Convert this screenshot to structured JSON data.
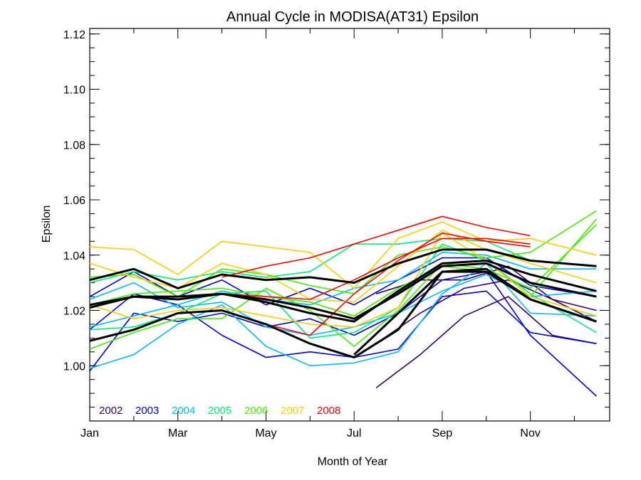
{
  "chart_data": {
    "type": "line",
    "title": "Annual Cycle in MODISA(AT31) Epsilon",
    "xlabel": "Month of Year",
    "ylabel": "Epsilon",
    "xlim": [
      1,
      12.8
    ],
    "ylim": [
      0.98,
      1.122
    ],
    "xticks": [
      {
        "value": 1,
        "label": "Jan"
      },
      {
        "value": 3,
        "label": "Mar"
      },
      {
        "value": 5,
        "label": "May"
      },
      {
        "value": 7,
        "label": "Jul"
      },
      {
        "value": 9,
        "label": "Sep"
      },
      {
        "value": 11,
        "label": "Nov"
      }
    ],
    "yticks": [
      {
        "value": 1.0,
        "label": "1.00"
      },
      {
        "value": 1.02,
        "label": "1.02"
      },
      {
        "value": 1.04,
        "label": "1.04"
      },
      {
        "value": 1.06,
        "label": "1.06"
      },
      {
        "value": 1.08,
        "label": "1.08"
      },
      {
        "value": 1.1,
        "label": "1.10"
      },
      {
        "value": 1.12,
        "label": "1.12"
      }
    ],
    "grid": false,
    "legend": {
      "placement": "bottom-left",
      "entries": [
        {
          "label": "2002",
          "color": "#330066"
        },
        {
          "label": "2003",
          "color": "#0000dd"
        },
        {
          "label": "2004",
          "color": "#00bbff"
        },
        {
          "label": "2005",
          "color": "#00ee77"
        },
        {
          "label": "2006",
          "color": "#44ee00"
        },
        {
          "label": "2007",
          "color": "#ffcc00"
        },
        {
          "label": "2008",
          "color": "#ff0000"
        }
      ]
    },
    "series": [
      {
        "name": "2002",
        "color": "#330066",
        "x": [
          7.5,
          8.5,
          9.5,
          10.5,
          11.5,
          12.5
        ],
        "y": [
          0.992,
          1.004,
          1.018,
          1.025,
          1.011,
          1.008
        ]
      },
      {
        "name": "2002",
        "color": "#330066",
        "x": [
          7.5,
          8.5,
          9.5,
          10.5,
          11.5,
          12.5
        ],
        "y": [
          1.026,
          1.031,
          1.031,
          1.036,
          1.024,
          1.02
        ]
      },
      {
        "name": "2002",
        "color": "#330066",
        "x": [
          7.5,
          8.5,
          9.5,
          10.5,
          11.5,
          12.5
        ],
        "y": [
          1.008,
          1.019,
          1.028,
          1.031,
          1.024,
          1.016
        ]
      },
      {
        "name": "2003",
        "color": "#0000dd",
        "x": [
          1,
          2,
          3,
          4,
          5,
          6,
          7,
          8,
          9,
          10,
          11,
          12.5
        ],
        "y": [
          0.998,
          1.019,
          1.016,
          1.019,
          1.014,
          1.017,
          1.011,
          1.019,
          1.031,
          1.034,
          1.011,
          0.989
        ]
      },
      {
        "name": "2003",
        "color": "#0000dd",
        "x": [
          1,
          2,
          3,
          4,
          5,
          6,
          7,
          8,
          9,
          10,
          11,
          12.5
        ],
        "y": [
          1.025,
          1.034,
          1.025,
          1.031,
          1.022,
          1.028,
          1.022,
          1.031,
          1.039,
          1.039,
          1.029,
          1.025
        ]
      },
      {
        "name": "2003",
        "color": "#0000dd",
        "x": [
          1,
          2,
          3,
          4,
          5,
          6,
          7,
          8,
          9,
          10,
          11,
          12.5
        ],
        "y": [
          1.013,
          1.026,
          1.022,
          1.011,
          1.003,
          1.005,
          1.003,
          1.006,
          1.025,
          1.027,
          1.012,
          1.008
        ]
      },
      {
        "name": "2004",
        "color": "#00bbff",
        "x": [
          1,
          2,
          3,
          4,
          5,
          6,
          7,
          8,
          9,
          10,
          11,
          12.5
        ],
        "y": [
          0.999,
          1.004,
          1.015,
          1.022,
          1.007,
          1.0,
          1.001,
          1.005,
          1.026,
          1.037,
          1.019,
          1.018
        ]
      },
      {
        "name": "2004",
        "color": "#00bbff",
        "x": [
          1,
          2,
          3,
          4,
          5,
          6,
          7,
          8,
          9,
          10,
          11,
          12.5
        ],
        "y": [
          1.024,
          1.03,
          1.021,
          1.023,
          1.014,
          1.011,
          1.014,
          1.019,
          1.027,
          1.033,
          1.025,
          1.027
        ]
      },
      {
        "name": "2004",
        "color": "#00bbff",
        "x": [
          1,
          2,
          3,
          4,
          5,
          6,
          7,
          8,
          9,
          10,
          11,
          12.5
        ],
        "y": [
          1.014,
          1.018,
          1.022,
          1.027,
          1.024,
          1.022,
          1.028,
          1.031,
          1.041,
          1.04,
          1.035,
          1.035
        ]
      },
      {
        "name": "2005",
        "color": "#00ee77",
        "x": [
          1,
          2,
          3,
          4,
          5,
          6,
          7,
          8,
          9,
          10,
          11,
          12.5
        ],
        "y": [
          1.013,
          1.014,
          1.019,
          1.026,
          1.027,
          1.01,
          1.012,
          1.021,
          1.044,
          1.038,
          1.026,
          1.012
        ]
      },
      {
        "name": "2005",
        "color": "#00ee77",
        "x": [
          1,
          2,
          3,
          4,
          5,
          6,
          7,
          8,
          9,
          10,
          11,
          12.5
        ],
        "y": [
          1.03,
          1.034,
          1.031,
          1.034,
          1.032,
          1.034,
          1.044,
          1.044,
          1.046,
          1.045,
          1.038,
          1.036
        ]
      },
      {
        "name": "2006",
        "color": "#44ee00",
        "x": [
          1,
          2,
          3,
          4,
          5,
          6,
          7,
          8,
          9,
          10,
          11,
          12.5
        ],
        "y": [
          1.006,
          1.012,
          1.017,
          1.017,
          1.028,
          1.02,
          1.007,
          1.02,
          1.037,
          1.035,
          1.028,
          1.051
        ]
      },
      {
        "name": "2006",
        "color": "#44ee00",
        "x": [
          1,
          2,
          3,
          4,
          5,
          6,
          7,
          8,
          9,
          10,
          11,
          12.5
        ],
        "y": [
          1.032,
          1.033,
          1.025,
          1.035,
          1.033,
          1.029,
          1.026,
          1.04,
          1.043,
          1.039,
          1.041,
          1.056
        ]
      },
      {
        "name": "2006",
        "color": "#44ee00",
        "x": [
          1,
          2,
          3,
          4,
          5,
          6,
          7,
          8,
          9,
          10,
          11,
          12.5
        ],
        "y": [
          1.022,
          1.026,
          1.027,
          1.028,
          1.025,
          1.023,
          1.018,
          1.028,
          1.036,
          1.034,
          1.025,
          1.053
        ]
      },
      {
        "name": "2007",
        "color": "#ffcc00",
        "x": [
          1,
          2,
          3,
          4,
          5,
          6,
          7,
          8,
          9,
          10,
          11,
          12.5
        ],
        "y": [
          1.043,
          1.042,
          1.033,
          1.045,
          1.043,
          1.041,
          1.028,
          1.046,
          1.052,
          1.045,
          1.046,
          1.04
        ]
      },
      {
        "name": "2007",
        "color": "#ffcc00",
        "x": [
          1,
          2,
          3,
          4,
          5,
          6,
          7,
          8,
          9,
          10,
          11,
          12.5
        ],
        "y": [
          1.037,
          1.032,
          1.028,
          1.037,
          1.033,
          1.024,
          1.023,
          1.036,
          1.049,
          1.042,
          1.037,
          1.03
        ]
      },
      {
        "name": "2007",
        "color": "#ffcc00",
        "x": [
          1,
          2,
          3,
          4,
          5,
          6,
          7,
          8,
          9,
          10,
          11,
          12.5
        ],
        "y": [
          1.022,
          1.017,
          1.02,
          1.021,
          1.018,
          1.015,
          1.014,
          1.021,
          1.048,
          1.038,
          1.025,
          1.018
        ]
      },
      {
        "name": "2008",
        "color": "#ff0000",
        "x": [
          4,
          5,
          6,
          7,
          8,
          9,
          10,
          11
        ],
        "y": [
          1.032,
          1.036,
          1.039,
          1.044,
          1.049,
          1.054,
          1.05,
          1.047
        ]
      },
      {
        "name": "2008",
        "color": "#ff0000",
        "x": [
          4,
          5,
          6,
          7,
          8,
          9,
          10,
          11
        ],
        "y": [
          1.026,
          1.025,
          1.024,
          1.031,
          1.039,
          1.046,
          1.046,
          1.044
        ]
      },
      {
        "name": "2008",
        "color": "#ff0000",
        "x": [
          4,
          5,
          6,
          7,
          8,
          9,
          10,
          11
        ],
        "y": [
          1.02,
          1.015,
          1.011,
          1.026,
          1.038,
          1.048,
          1.045,
          1.043
        ]
      },
      {
        "name": "",
        "color": "#000000",
        "width": 3,
        "x": [
          1,
          2,
          3,
          4,
          5,
          6,
          7,
          8,
          9,
          10,
          11,
          12.5
        ],
        "y": [
          1.031,
          1.035,
          1.028,
          1.033,
          1.031,
          1.032,
          1.03,
          1.037,
          1.042,
          1.042,
          1.038,
          1.036
        ]
      },
      {
        "name": "",
        "color": "#000000",
        "width": 3,
        "x": [
          1,
          2,
          3,
          4,
          5,
          6,
          7,
          8,
          9,
          10,
          11,
          12.5
        ],
        "y": [
          1.022,
          1.025,
          1.025,
          1.026,
          1.023,
          1.019,
          1.016,
          1.027,
          1.037,
          1.038,
          1.033,
          1.027
        ]
      },
      {
        "name": "",
        "color": "#000000",
        "width": 3,
        "x": [
          1,
          2,
          3,
          4,
          5,
          6,
          7,
          8,
          9,
          10,
          11,
          12.5
        ],
        "y": [
          1.009,
          1.013,
          1.019,
          1.02,
          1.015,
          1.008,
          1.003,
          1.013,
          1.034,
          1.035,
          1.024,
          1.016
        ]
      },
      {
        "name": "",
        "color": "#000000",
        "width": 3,
        "x": [
          1,
          2,
          3,
          4,
          5,
          6,
          7,
          8,
          9,
          10,
          11,
          12.5
        ],
        "y": [
          1.021,
          1.025,
          1.024,
          1.026,
          1.024,
          1.021,
          1.017,
          1.026,
          1.036,
          1.037,
          1.03,
          1.025
        ]
      },
      {
        "name": "",
        "color": "#000000",
        "width": 3,
        "x": [
          7,
          8,
          9,
          10,
          11,
          12.5
        ],
        "y": [
          1.004,
          1.019,
          1.034,
          1.034,
          1.024,
          1.016
        ]
      }
    ]
  }
}
